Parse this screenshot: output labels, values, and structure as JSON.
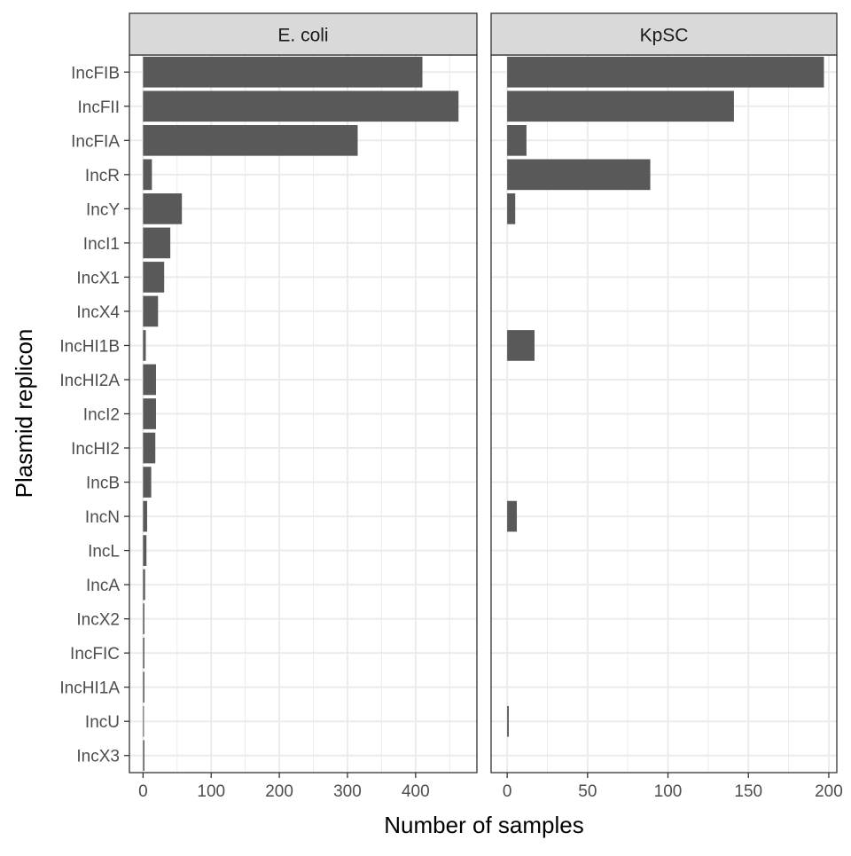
{
  "chart_data": {
    "type": "bar",
    "orientation": "horizontal",
    "faceted": true,
    "xlabel": "Number of samples",
    "ylabel": "Plasmid replicon",
    "grid": true,
    "legend": "none",
    "colors": {
      "bar": "#595959",
      "strip": "#d9d9d9",
      "grid": "#ebebeb",
      "border": "#333333",
      "text": "#4d4d4d"
    },
    "categories": [
      "IncFIB",
      "IncFII",
      "IncFIA",
      "IncR",
      "IncY",
      "IncI1",
      "IncX1",
      "IncX4",
      "IncHI1B",
      "IncHI2A",
      "IncI2",
      "IncHI2",
      "IncB",
      "IncN",
      "IncL",
      "IncA",
      "IncX2",
      "IncFIC",
      "IncHI1A",
      "IncU",
      "IncX3"
    ],
    "panels": [
      {
        "title": "E. coli",
        "xlim": [
          -20,
          490
        ],
        "xticks": [
          0,
          100,
          200,
          300,
          400
        ],
        "values": [
          410,
          463,
          315,
          13,
          57,
          40,
          31,
          22,
          4,
          19,
          19,
          18,
          12,
          6,
          5,
          3,
          2,
          2,
          2,
          1,
          2
        ]
      },
      {
        "title": "KpSC",
        "xlim": [
          -10,
          205
        ],
        "xticks": [
          0,
          50,
          100,
          150,
          200
        ],
        "values": [
          197,
          141,
          12,
          89,
          5,
          0,
          0,
          0,
          17,
          0,
          0,
          0,
          0,
          6,
          0,
          0,
          0,
          0,
          0,
          1,
          0
        ]
      }
    ]
  }
}
